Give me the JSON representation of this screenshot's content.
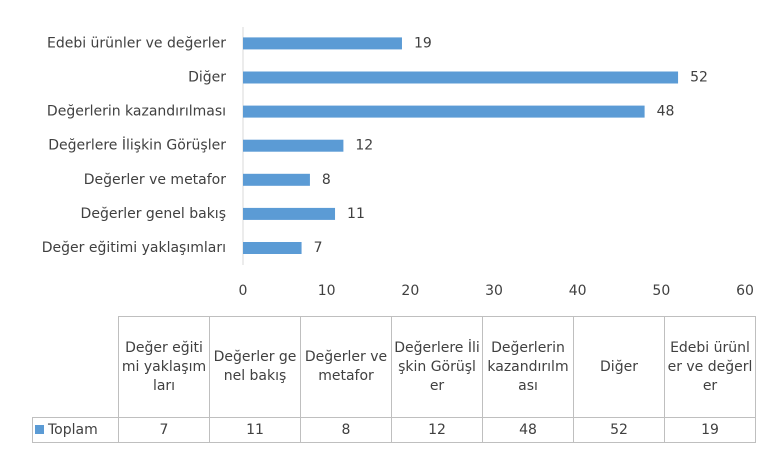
{
  "chart_data": {
    "type": "bar",
    "orientation": "horizontal",
    "categories": [
      "Değer eğitimi yaklaşımları",
      "Değerler genel bakış",
      "Değerler ve metafor",
      "Değerlere İlişkin Görüşler",
      "Değerlerin kazandırılması",
      "Diğer",
      "Edebi ürünler ve değerler"
    ],
    "series": [
      {
        "name": "Toplam",
        "color": "#5b9bd5",
        "values": [
          7,
          11,
          8,
          12,
          48,
          52,
          19
        ]
      }
    ],
    "xlim": [
      0,
      60
    ],
    "xticks": [
      0,
      10,
      20,
      30,
      40,
      50,
      60
    ],
    "grid": false,
    "data_table": true
  }
}
